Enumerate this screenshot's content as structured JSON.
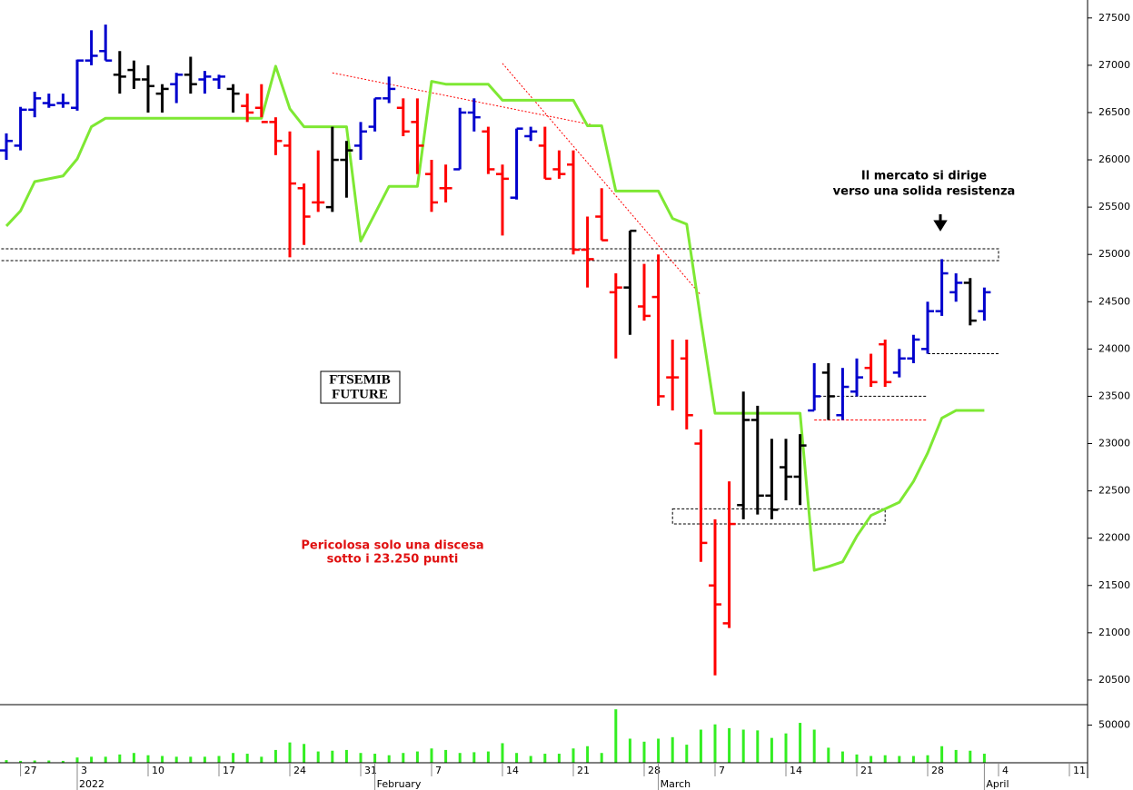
{
  "chart_data": {
    "type": "ohlc",
    "x": [
      "2021-12-23",
      "2021-12-27",
      "2021-12-28",
      "2021-12-29",
      "2021-12-30",
      "2022-01-03",
      "2022-01-04",
      "2022-01-05",
      "2022-01-06",
      "2022-01-07",
      "2022-01-10",
      "2022-01-11",
      "2022-01-12",
      "2022-01-13",
      "2022-01-14",
      "2022-01-17",
      "2022-01-18",
      "2022-01-19",
      "2022-01-20",
      "2022-01-21",
      "2022-01-24",
      "2022-01-25",
      "2022-01-26",
      "2022-01-27",
      "2022-01-28",
      "2022-01-31",
      "2022-02-01",
      "2022-02-02",
      "2022-02-03",
      "2022-02-04",
      "2022-02-07",
      "2022-02-08",
      "2022-02-09",
      "2022-02-10",
      "2022-02-11",
      "2022-02-14",
      "2022-02-15",
      "2022-02-16",
      "2022-02-17",
      "2022-02-18",
      "2022-02-21",
      "2022-02-22",
      "2022-02-23",
      "2022-02-24",
      "2022-02-25",
      "2022-02-28",
      "2022-03-01",
      "2022-03-02",
      "2022-03-03",
      "2022-03-04",
      "2022-03-07",
      "2022-03-08",
      "2022-03-09",
      "2022-03-10",
      "2022-03-11",
      "2022-03-14",
      "2022-03-15",
      "2022-03-16",
      "2022-03-17",
      "2022-03-18",
      "2022-03-21",
      "2022-03-22",
      "2022-03-23",
      "2022-03-24",
      "2022-03-25",
      "2022-03-28",
      "2022-03-29",
      "2022-03-30",
      "2022-03-31",
      "2022-04-01"
    ],
    "open": [
      26100,
      26150,
      26530,
      26600,
      26600,
      26550,
      27050,
      27150,
      26900,
      26950,
      26850,
      26700,
      26800,
      26900,
      26850,
      26850,
      26750,
      26570,
      26550,
      26400,
      26150,
      25700,
      25550,
      25500,
      26000,
      26150,
      26350,
      26650,
      26550,
      26400,
      25850,
      25700,
      25900,
      26500,
      26300,
      25850,
      25600,
      26250,
      26150,
      25900,
      25950,
      25050,
      25400,
      24600,
      24650,
      24450,
      24550,
      23700,
      23900,
      23000,
      21500,
      21100,
      22350,
      23250,
      22450,
      22750,
      22650,
      23350,
      23750,
      23300,
      23550,
      23800,
      24050,
      23750,
      23900,
      24000,
      24400,
      24600,
      24700,
      24400
    ],
    "high": [
      26280,
      26560,
      26720,
      26700,
      26700,
      27060,
      27370,
      27430,
      27150,
      27050,
      27000,
      26800,
      26920,
      27090,
      26940,
      26900,
      26800,
      26700,
      26800,
      26450,
      26300,
      25750,
      26100,
      26350,
      26200,
      26400,
      26650,
      26880,
      26650,
      26650,
      26000,
      25950,
      26550,
      26650,
      26350,
      25950,
      26330,
      26350,
      26350,
      26100,
      26100,
      25400,
      25700,
      24800,
      25250,
      24900,
      25000,
      24100,
      24100,
      23150,
      22200,
      22600,
      23550,
      23400,
      23050,
      23050,
      23100,
      23850,
      23850,
      23800,
      23900,
      23950,
      24100,
      24000,
      24150,
      24500,
      24950,
      24800,
      24750,
      24650
    ],
    "low": [
      26000,
      26100,
      26450,
      26550,
      26550,
      26520,
      27000,
      27050,
      26700,
      26750,
      26500,
      26500,
      26600,
      26700,
      26700,
      26750,
      26500,
      26400,
      26450,
      26050,
      24970,
      25100,
      25450,
      25450,
      25600,
      26000,
      26300,
      26600,
      26250,
      25850,
      25450,
      25550,
      25900,
      26300,
      25850,
      25200,
      25580,
      26200,
      25800,
      25800,
      25000,
      24650,
      25150,
      23900,
      24150,
      24300,
      23400,
      23350,
      23150,
      21750,
      20550,
      21050,
      22200,
      22250,
      22200,
      22400,
      22350,
      23350,
      23250,
      23250,
      23500,
      23600,
      23600,
      23700,
      23850,
      23950,
      24350,
      24500,
      24250,
      24300
    ],
    "close": [
      26200,
      26530,
      26650,
      26580,
      26600,
      27050,
      27100,
      27050,
      26880,
      26850,
      26780,
      26750,
      26900,
      26800,
      26880,
      26880,
      26700,
      26500,
      26400,
      26200,
      25750,
      25400,
      25550,
      26000,
      26100,
      26300,
      26650,
      26750,
      26300,
      26150,
      25550,
      25700,
      26500,
      26450,
      25900,
      25800,
      26330,
      26300,
      25800,
      25850,
      25050,
      24950,
      25150,
      24650,
      25250,
      24350,
      23500,
      23700,
      23300,
      21950,
      21300,
      22150,
      23250,
      22450,
      22300,
      22650,
      22980,
      23500,
      23500,
      23600,
      23700,
      23650,
      23650,
      23900,
      24100,
      24400,
      24800,
      24700,
      24300,
      24600
    ],
    "colors": [
      "mediumblue",
      "mediumblue",
      "mediumblue",
      "mediumblue",
      "mediumblue",
      "mediumblue",
      "mediumblue",
      "mediumblue",
      "black",
      "black",
      "black",
      "black",
      "mediumblue",
      "black",
      "mediumblue",
      "mediumblue",
      "black",
      "red",
      "red",
      "red",
      "red",
      "red",
      "red",
      "black",
      "black",
      "mediumblue",
      "mediumblue",
      "mediumblue",
      "red",
      "red",
      "red",
      "red",
      "mediumblue",
      "mediumblue",
      "red",
      "red",
      "mediumblue",
      "mediumblue",
      "red",
      "red",
      "red",
      "red",
      "red",
      "red",
      "black",
      "red",
      "red",
      "red",
      "red",
      "red",
      "red",
      "red",
      "black",
      "black",
      "black",
      "black",
      "black",
      "mediumblue",
      "black",
      "mediumblue",
      "mediumblue",
      "red",
      "red",
      "mediumblue",
      "mediumblue",
      "mediumblue",
      "mediumblue",
      "mediumblue",
      "black",
      "mediumblue"
    ],
    "trend_line": {
      "color": "#7ee833",
      "values": [
        25300,
        25460,
        25770,
        25800,
        25830,
        26010,
        26350,
        26440,
        26440,
        26440,
        26440,
        26440,
        26440,
        26440,
        26440,
        26440,
        26440,
        26440,
        26440,
        26990,
        26540,
        26350,
        26350,
        26350,
        26350,
        25140,
        25430,
        25720,
        25720,
        25720,
        26830,
        26800,
        26800,
        26800,
        26800,
        26630,
        26630,
        26630,
        26630,
        26630,
        26630,
        26360,
        26360,
        25670,
        25670,
        25670,
        25670,
        25380,
        25320,
        24300,
        23320,
        23320,
        23320,
        23320,
        23320,
        23320,
        23320,
        21660,
        21700,
        21750,
        22020,
        22240,
        22310,
        22380,
        22600,
        22900,
        23270,
        23350,
        23350,
        23350
      ]
    },
    "volume": {
      "color": "#33ee22",
      "values": [
        3500,
        2500,
        3000,
        3000,
        2500,
        7000,
        8000,
        8000,
        11000,
        13000,
        10000,
        9000,
        8000,
        8000,
        8000,
        9000,
        13000,
        12000,
        8000,
        17000,
        27000,
        25000,
        15000,
        16000,
        17000,
        13000,
        12000,
        10000,
        13000,
        15000,
        19000,
        17000,
        13000,
        14000,
        15000,
        26000,
        13000,
        9000,
        12000,
        12000,
        19000,
        22000,
        13000,
        71000,
        32000,
        28000,
        32000,
        34000,
        24000,
        44000,
        51000,
        46000,
        44000,
        43000,
        33000,
        39000,
        53000,
        44000,
        20000,
        15000,
        11000,
        9000,
        10000,
        9000,
        9000,
        10000,
        22000,
        17000,
        16000,
        12000
      ],
      "ylim": [
        0,
        76000
      ],
      "yticks": [
        50000
      ]
    },
    "ylim": [
      20240,
      27690
    ],
    "yticks": [
      20500,
      21000,
      21500,
      22000,
      22500,
      23000,
      23500,
      24000,
      24500,
      25000,
      25500,
      26000,
      26500,
      27000,
      27500
    ],
    "xticks": [
      {
        "value": "2021-12-27",
        "label": "27"
      },
      {
        "value": "2022-01-03",
        "label": "3"
      },
      {
        "value": "2022-01-10",
        "label": "10"
      },
      {
        "value": "2022-01-17",
        "label": "17"
      },
      {
        "value": "2022-01-24",
        "label": "24"
      },
      {
        "value": "2022-01-31",
        "label": "31"
      },
      {
        "value": "2022-02-07",
        "label": "7"
      },
      {
        "value": "2022-02-14",
        "label": "14"
      },
      {
        "value": "2022-02-21",
        "label": "21"
      },
      {
        "value": "2022-02-28",
        "label": "28"
      },
      {
        "value": "2022-03-07",
        "label": "7"
      },
      {
        "value": "2022-03-14",
        "label": "14"
      },
      {
        "value": "2022-03-21",
        "label": "21"
      },
      {
        "value": "2022-03-28",
        "label": "28"
      },
      {
        "value": "2022-04-04",
        "label": "4"
      },
      {
        "value": "2022-04-11",
        "label": "11"
      }
    ],
    "month_ticks": [
      {
        "value": "2022-01-03",
        "label": "2022"
      },
      {
        "value": "2022-02-01",
        "label": "February"
      },
      {
        "value": "2022-03-01",
        "label": "March"
      },
      {
        "value": "2022-04-01",
        "label": "April"
      }
    ],
    "levels": [
      {
        "kind": "box",
        "style": "dashed",
        "color": "black",
        "x": [
          "2021-12-22",
          "2022-04-04"
        ],
        "y": [
          24935,
          25060
        ]
      },
      {
        "kind": "line",
        "style": "dashed",
        "color": "black",
        "x": [
          "2022-03-28",
          "2022-04-04"
        ],
        "y": [
          23950,
          23950
        ]
      },
      {
        "kind": "line",
        "style": "dashed",
        "color": "black",
        "x": [
          "2022-03-16",
          "2022-03-28"
        ],
        "y": [
          23500,
          23500
        ]
      },
      {
        "kind": "line",
        "style": "dashed",
        "color": "red",
        "x": [
          "2022-03-16",
          "2022-03-28"
        ],
        "y": [
          23250,
          23250
        ]
      },
      {
        "kind": "box",
        "style": "dashed",
        "color": "black",
        "x": [
          "2022-03-02",
          "2022-03-23"
        ],
        "y": [
          22150,
          22310
        ]
      },
      {
        "kind": "line",
        "style": "dotted",
        "color": "red",
        "x": [
          "2022-01-27",
          "2022-02-23"
        ],
        "y": [
          26920,
          26350
        ]
      },
      {
        "kind": "line",
        "style": "dotted",
        "color": "red",
        "x": [
          "2022-02-14",
          "2022-03-04"
        ],
        "y": [
          27020,
          24570
        ]
      }
    ],
    "annotations": {
      "label_box": [
        "FTSEMIB",
        "FUTURE"
      ],
      "note_right": [
        "Il mercato si dirige",
        "verso una solida resistenza"
      ],
      "note_left": [
        "Pericolosa solo una discesa",
        "sotto i 23.250 punti"
      ]
    }
  }
}
